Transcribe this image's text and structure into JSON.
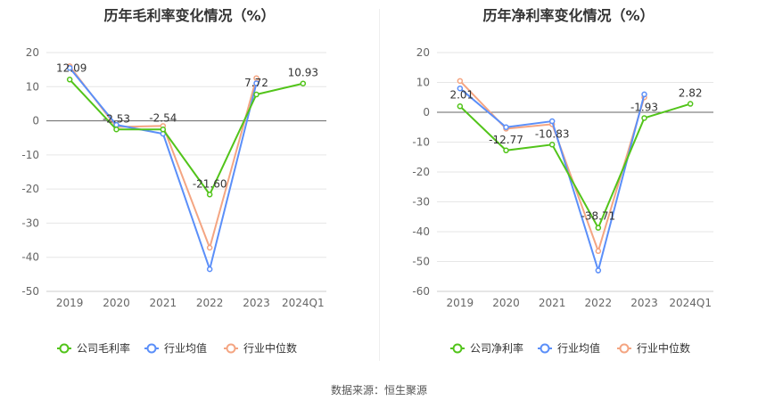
{
  "source": "数据来源：恒生聚源",
  "chart_data": [
    {
      "type": "line",
      "title": "历年毛利率变化情况（%）",
      "categories": [
        "2019",
        "2020",
        "2021",
        "2022",
        "2023",
        "2024Q1"
      ],
      "ylim": [
        -50,
        20
      ],
      "yticks": [
        20,
        10,
        0,
        -10,
        -20,
        -30,
        -40,
        -50
      ],
      "grid": true,
      "legend_position": "bottom",
      "series": [
        {
          "name": "公司毛利率",
          "color": "#52c41a",
          "values": [
            12.09,
            -2.53,
            -2.54,
            -21.6,
            7.72,
            10.93
          ],
          "labels": [
            "12.09",
            "-2.53",
            "-2.54",
            "-21.60",
            "7.72",
            "10.93"
          ]
        },
        {
          "name": "行业均值",
          "color": "#5b8ff9",
          "values": [
            15.5,
            -1.2,
            -3.8,
            -43.5,
            11.0,
            null
          ]
        },
        {
          "name": "行业中位数",
          "color": "#f4a582",
          "values": [
            16.0,
            -1.8,
            -1.5,
            -37.2,
            12.5,
            null
          ]
        }
      ]
    },
    {
      "type": "line",
      "title": "历年净利率变化情况（%）",
      "categories": [
        "2019",
        "2020",
        "2021",
        "2022",
        "2023",
        "2024Q1"
      ],
      "ylim": [
        -60,
        20
      ],
      "yticks": [
        20,
        10,
        0,
        -10,
        -20,
        -30,
        -40,
        -50,
        -60
      ],
      "grid": true,
      "legend_position": "bottom",
      "series": [
        {
          "name": "公司净利率",
          "color": "#52c41a",
          "values": [
            2.01,
            -12.77,
            -10.83,
            -38.71,
            -1.93,
            2.82
          ],
          "labels": [
            "2.01",
            "-12.77",
            "-10.83",
            "-38.71",
            "-1.93",
            "2.82"
          ]
        },
        {
          "name": "行业均值",
          "color": "#5b8ff9",
          "values": [
            8.0,
            -5.0,
            -3.0,
            -53.0,
            6.0,
            null
          ]
        },
        {
          "name": "行业中位数",
          "color": "#f4a582",
          "values": [
            10.5,
            -5.5,
            -4.0,
            -46.5,
            5.0,
            null
          ]
        }
      ]
    }
  ]
}
